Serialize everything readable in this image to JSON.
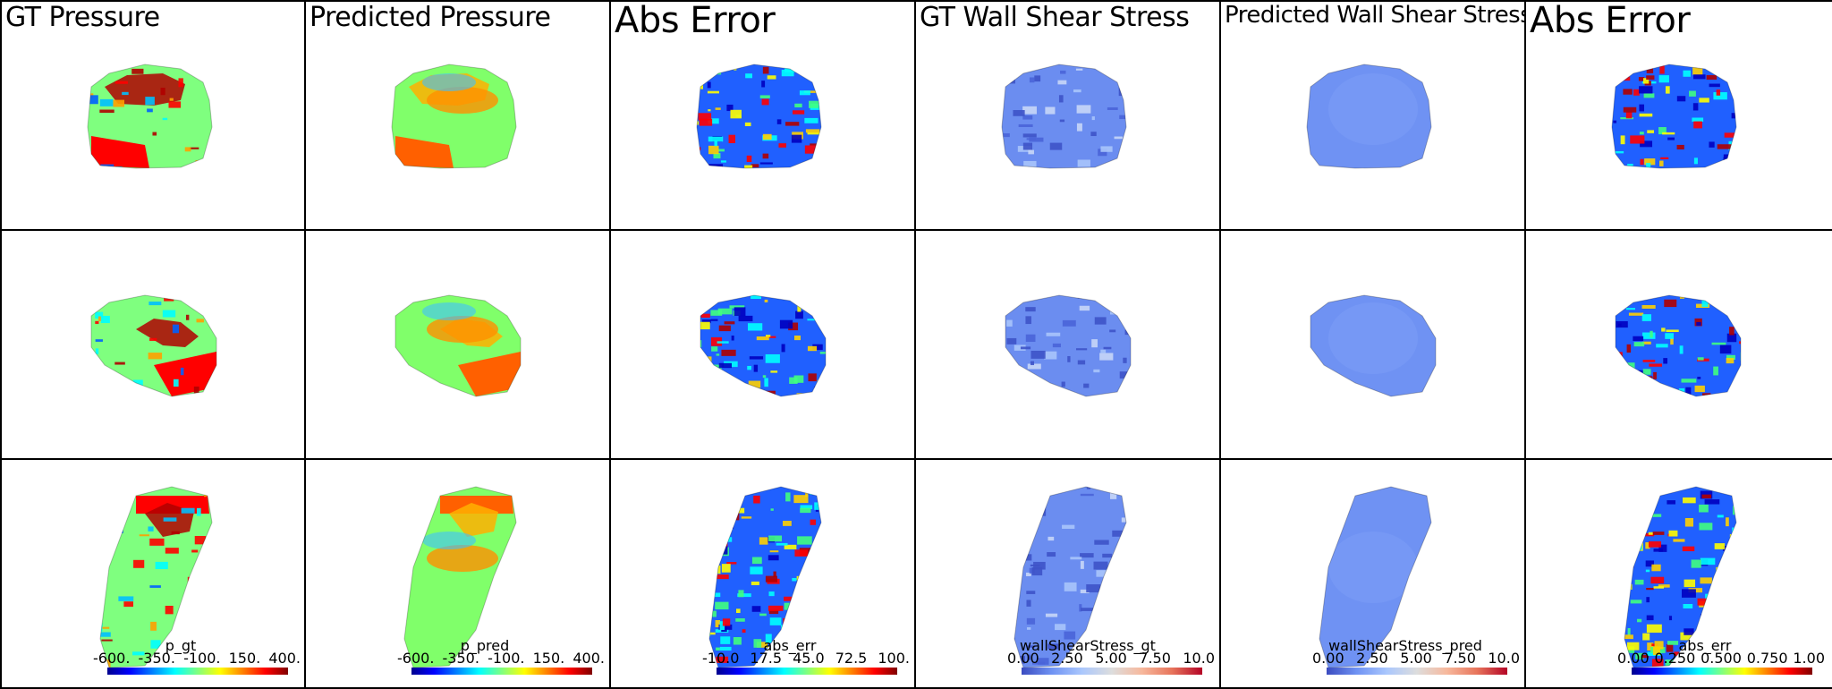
{
  "columns": [
    {
      "title": "GT Pressure",
      "field": "p_gt",
      "kind": "jet-pressure",
      "ticks": [
        "-600.",
        "-350.",
        "-100.",
        "150.",
        "400."
      ]
    },
    {
      "title": "Predicted Pressure",
      "field": "p_pred",
      "kind": "jet-pressure-smooth",
      "ticks": [
        "-600.",
        "-350.",
        "-100.",
        "150.",
        "400."
      ]
    },
    {
      "title": "Abs Error",
      "field": "abs_err",
      "kind": "jet-error",
      "ticks": [
        "-10.0",
        "17.5",
        "45.0",
        "72.5",
        "100."
      ]
    },
    {
      "title": "GT Wall Shear Stress",
      "field": "wallShearStress_gt",
      "kind": "cw-gt",
      "ticks": [
        "0.00",
        "2.50",
        "5.00",
        "7.50",
        "10.0"
      ]
    },
    {
      "title": "Predicted Wall Shear Stress",
      "field": "wallShearStress_pred",
      "kind": "cw-pred",
      "ticks": [
        "0.00",
        "2.50",
        "5.00",
        "7.50",
        "10.0"
      ]
    },
    {
      "title": "Abs Error",
      "field": "abs_err",
      "kind": "jet-error",
      "ticks": [
        "0.00",
        "0.250",
        "0.500",
        "0.750",
        "1.00"
      ]
    }
  ],
  "rows": [
    "side-front",
    "rear-iso",
    "bottom"
  ],
  "colors": {
    "jet": [
      "#00008f",
      "#0000ff",
      "#0080ff",
      "#00ffff",
      "#80ff80",
      "#ffff00",
      "#ff8000",
      "#ff0000",
      "#800000"
    ],
    "coolwarm": [
      "#3b4cc0",
      "#6f92f3",
      "#aac7fd",
      "#dddddd",
      "#f7b89c",
      "#e7745b",
      "#b40426"
    ]
  }
}
